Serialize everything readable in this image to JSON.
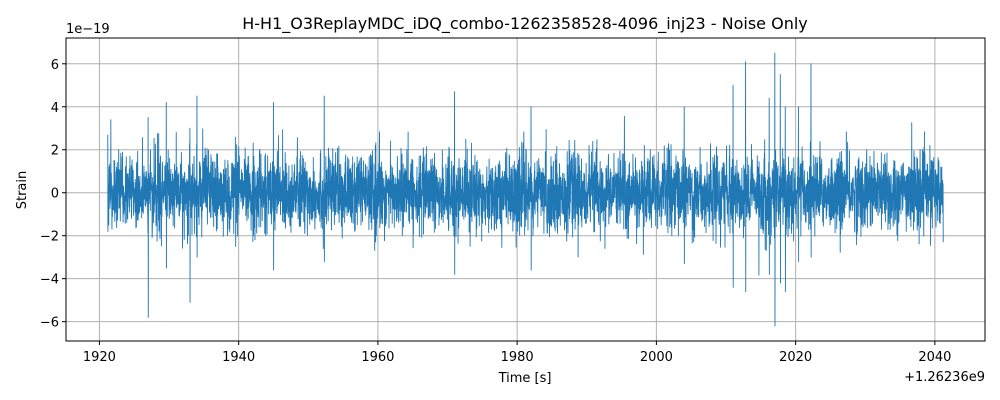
{
  "chart_data": {
    "type": "line",
    "title": "H-H1_O3ReplayMDC_iDQ_combo-1262358528-4096_inj23 - Noise Only",
    "xlabel": "Time [s]",
    "ylabel": "Strain",
    "x_offset_label": "+1.26236e9",
    "y_multiplier_label": "1e−19",
    "xlim": [
      1915.2,
      2047.2
    ],
    "ylim": [
      -6.9,
      7.2
    ],
    "x_range_data": [
      1921.2,
      2041.2
    ],
    "x_ticks": [
      1920,
      1940,
      1960,
      1980,
      2000,
      2020,
      2040
    ],
    "x_tick_labels": [
      "1920",
      "1940",
      "1960",
      "1980",
      "2000",
      "2020",
      "2040"
    ],
    "y_ticks": [
      -6,
      -4,
      -2,
      0,
      2,
      4,
      6
    ],
    "y_tick_labels": [
      "−6",
      "−4",
      "−2",
      "0",
      "2",
      "4",
      "6"
    ],
    "grid": true,
    "line_color": "#1f77b4",
    "series": [
      {
        "points_x": [
          1921.2,
          1927.0,
          1929.6,
          1933.0,
          1934.0,
          1945.0,
          1952.3,
          1971.0,
          1982.0,
          2004.0,
          2011.0,
          2012.8,
          2016.2,
          2017.0,
          2017.8,
          2018.5,
          2020.4,
          2022.2,
          2041.2
        ],
        "points_y_peak_high": [
          2.7,
          3.5,
          4.2,
          3.0,
          4.5,
          4.2,
          4.5,
          4.7,
          4.0,
          4.0,
          5.0,
          6.1,
          4.4,
          6.5,
          5.5,
          4.0,
          4.0,
          6.0,
          3.4
        ],
        "points_y_peak_low": [
          -1.8,
          -5.8,
          -3.5,
          -5.1,
          -3.0,
          -3.6,
          -3.2,
          -3.8,
          -3.6,
          -3.3,
          -4.4,
          -4.6,
          -3.8,
          -6.2,
          -4.2,
          -4.6,
          -3.2,
          -3.0,
          -2.3
        ],
        "envelope": 2.3
      }
    ]
  }
}
